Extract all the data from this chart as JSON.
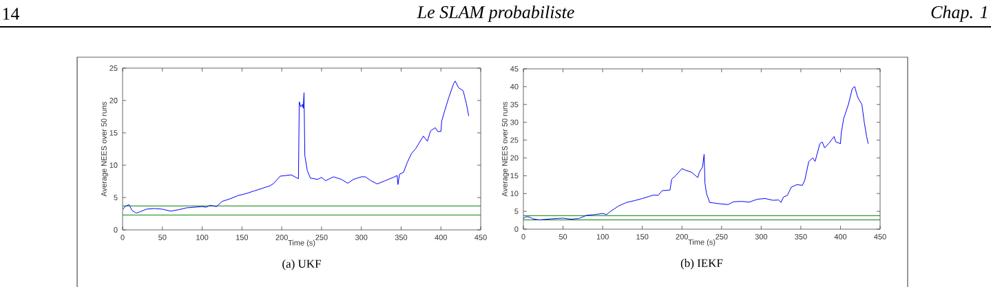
{
  "chart_data": [
    {
      "type": "line",
      "title": "(a)  UKF",
      "xlabel": "Time (s)",
      "ylabel": "Average NEES over 50 runs",
      "annotations": [
        "14",
        "Le SLAM probabiliste",
        "Chap. 1"
      ],
      "xlim": [
        0,
        450
      ],
      "xticks": [
        0,
        50,
        100,
        150,
        200,
        250,
        300,
        350,
        400,
        450
      ],
      "ylim": [
        0,
        25
      ],
      "yticks": [
        0,
        5,
        10,
        15,
        20,
        25
      ],
      "grid": false,
      "line_style": "solid",
      "ref_lines": [
        {
          "axis": "y",
          "value": 3.7,
          "color": "#008000"
        },
        {
          "axis": "y",
          "value": 2.3,
          "color": "#008000"
        }
      ],
      "series": [
        {
          "color": "#0000ff",
          "x": [
            0.5,
            3,
            8,
            12,
            17,
            22,
            30,
            40,
            50,
            60,
            70,
            80,
            90,
            100,
            105,
            110,
            118,
            125,
            135,
            145,
            155,
            165,
            175,
            185,
            190,
            198,
            205,
            212,
            221,
            222,
            224,
            226,
            227,
            228,
            229,
            232,
            236,
            245,
            250,
            255,
            265,
            275,
            283,
            290,
            300,
            305,
            312,
            320,
            330,
            340,
            345,
            346,
            348,
            353,
            358,
            363,
            368,
            373,
            378,
            383,
            387,
            393,
            396,
            400,
            401,
            405,
            410,
            416,
            418,
            422,
            428,
            432,
            435
          ],
          "values": [
            3.2,
            3.6,
            3.9,
            3.0,
            2.6,
            2.8,
            3.2,
            3.3,
            3.2,
            2.9,
            3.1,
            3.4,
            3.5,
            3.6,
            3.5,
            3.8,
            3.6,
            4.4,
            4.8,
            5.3,
            5.6,
            6.0,
            6.4,
            6.8,
            7.2,
            8.3,
            8.4,
            8.5,
            7.9,
            19.8,
            19.0,
            19.4,
            18.8,
            21.2,
            11.5,
            9.2,
            8.0,
            7.8,
            8.1,
            7.6,
            8.2,
            7.8,
            7.2,
            7.8,
            8.2,
            8.2,
            7.6,
            7.1,
            7.6,
            8.1,
            8.4,
            7.0,
            8.6,
            8.9,
            10.5,
            11.8,
            12.5,
            13.5,
            14.5,
            13.7,
            15.3,
            15.8,
            15.2,
            15.2,
            16.8,
            18.5,
            20.5,
            22.6,
            23.0,
            22.0,
            21.5,
            19.5,
            17.6
          ]
        }
      ]
    },
    {
      "type": "line",
      "title": "(b) IEKF",
      "xlabel": "Time (s)",
      "ylabel": "Average NEES over 50 runs",
      "xlim": [
        0,
        450
      ],
      "xticks": [
        0,
        50,
        100,
        150,
        200,
        250,
        300,
        350,
        400,
        450
      ],
      "ylim": [
        0,
        45
      ],
      "yticks": [
        0,
        5,
        10,
        15,
        20,
        25,
        30,
        35,
        40,
        45
      ],
      "grid": false,
      "line_style": "solid",
      "ref_lines": [
        {
          "axis": "y",
          "value": 3.8,
          "color": "#008000"
        },
        {
          "axis": "y",
          "value": 2.6,
          "color": "#008000"
        }
      ],
      "series": [
        {
          "color": "#0000ff",
          "x": [
            0,
            3,
            8,
            12,
            20,
            35,
            50,
            60,
            70,
            80,
            90,
            100,
            105,
            110,
            120,
            130,
            140,
            150,
            160,
            165,
            170,
            175,
            185,
            187,
            192,
            200,
            205,
            212,
            220,
            222,
            226,
            228,
            229,
            231,
            235,
            245,
            258,
            265,
            275,
            285,
            295,
            305,
            315,
            322,
            325,
            328,
            333,
            338,
            345,
            352,
            355,
            360,
            365,
            368,
            374,
            377,
            380,
            385,
            392,
            394,
            400,
            401,
            404,
            410,
            415,
            418,
            421,
            423,
            427,
            430,
            433,
            435
          ],
          "values": [
            3.0,
            3.5,
            3.4,
            2.9,
            2.6,
            2.9,
            3.1,
            2.8,
            3.0,
            3.9,
            4.1,
            4.4,
            4.1,
            5.0,
            6.5,
            7.5,
            8.0,
            8.6,
            9.3,
            9.6,
            9.5,
            10.8,
            11.0,
            14.0,
            15.0,
            17.0,
            16.5,
            16.0,
            14.5,
            16.0,
            17.5,
            21.0,
            13.0,
            10.0,
            7.5,
            7.2,
            6.9,
            7.7,
            7.8,
            7.6,
            8.4,
            8.6,
            8.1,
            8.2,
            7.5,
            9.0,
            9.5,
            11.8,
            12.5,
            12.3,
            13.8,
            19.0,
            20.0,
            19.0,
            24.0,
            24.5,
            22.8,
            24.0,
            26.0,
            24.5,
            24.0,
            27.0,
            31.0,
            35.0,
            39.5,
            40.0,
            37.5,
            36.5,
            35.0,
            30.0,
            26.0,
            24.0
          ]
        }
      ]
    }
  ]
}
